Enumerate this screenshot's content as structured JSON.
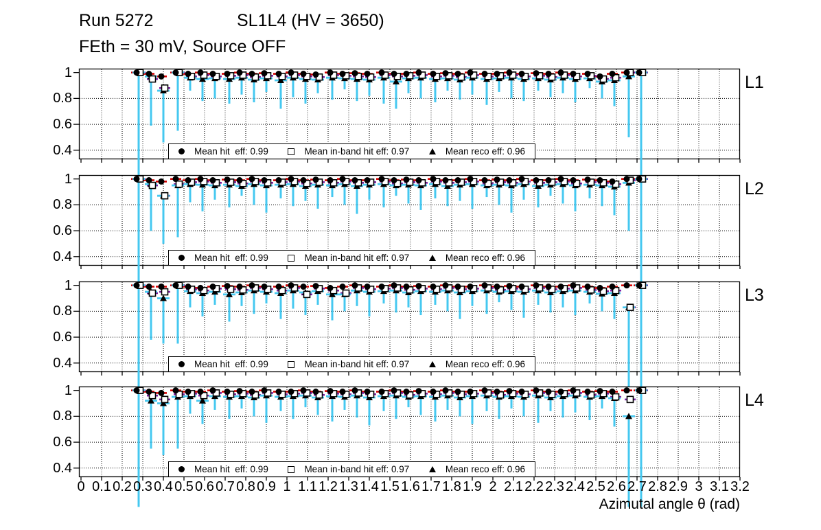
{
  "header": {
    "line1_left": "Run 5272",
    "line1_right": "SL1L4 (HV = 3650)",
    "line2": "FEth = 30 mV, Source OFF"
  },
  "colors": {
    "error_bar": "#45C8F0",
    "hit_cap": "#D40000",
    "inband_cap": "#7B1FA2",
    "reco_cap": "#45C8F0",
    "marker": "#000000",
    "grid": "#000000"
  },
  "legend": {
    "entries": [
      {
        "marker": "filled-circle",
        "label": "Mean hit  eff: 0.99"
      },
      {
        "marker": "open-square",
        "label": "Mean in-band hit eff: 0.97"
      },
      {
        "marker": "filled-triangle",
        "label": "Mean reco eff: 0.96"
      }
    ]
  },
  "x_axis": {
    "title": "Azimutal angle θ (rad)",
    "range": [
      0,
      3.2
    ],
    "tick_labels": [
      "0",
      "0.1",
      "0.2",
      "0.3",
      "0.4",
      "0.5",
      "0.6",
      "0.7",
      "0.8",
      "0.9",
      "1",
      "1.1",
      "1.2",
      "1.3",
      "1.4",
      "1.5",
      "1.6",
      "1.7",
      "1.8",
      "1.9",
      "2",
      "2.1",
      "2.2",
      "2.3",
      "2.4",
      "2.5",
      "2.6",
      "2.7",
      "2.8",
      "2.9",
      "3",
      "3.1",
      "3.2"
    ]
  },
  "y_axis": {
    "range": [
      0.33,
      1.03
    ],
    "tick_labels": [
      "1",
      "0.8",
      "0.6",
      "0.4"
    ],
    "tick_values": [
      1.0,
      0.8,
      0.6,
      0.4
    ],
    "grid_values": [
      0.8,
      0.6,
      0.4
    ]
  },
  "chart_data": [
    {
      "layer": "L1",
      "type": "scatter",
      "series_names": [
        "hit eff",
        "in-band hit eff",
        "reco eff"
      ],
      "means": {
        "hit": 0.99,
        "in_band": 0.97,
        "reco": 0.96
      },
      "point_format": [
        "x_rad",
        "hit",
        "in_band",
        "reco",
        "err_low"
      ],
      "points": [
        [
          0.28,
          1.0,
          1.0,
          1.0,
          0.1
        ],
        [
          0.34,
          0.99,
          0.95,
          0.97,
          0.59
        ],
        [
          0.4,
          0.97,
          0.88,
          0.86,
          0.46
        ],
        [
          0.47,
          1.0,
          1.0,
          1.0,
          0.55
        ],
        [
          0.53,
          0.99,
          0.97,
          0.96,
          0.86
        ],
        [
          0.59,
          1.0,
          0.98,
          0.95,
          0.78
        ],
        [
          0.65,
          0.99,
          0.97,
          0.955,
          0.8
        ],
        [
          0.72,
          0.99,
          0.975,
          0.95,
          0.76
        ],
        [
          0.78,
          1.0,
          0.98,
          0.96,
          0.83
        ],
        [
          0.84,
          0.99,
          0.965,
          0.945,
          0.77
        ],
        [
          0.9,
          0.995,
          0.975,
          0.955,
          0.85
        ],
        [
          0.97,
          0.99,
          0.97,
          0.94,
          0.72
        ],
        [
          1.03,
          1.0,
          0.98,
          0.96,
          0.81
        ],
        [
          1.09,
          0.99,
          0.97,
          0.95,
          0.76
        ],
        [
          1.15,
          0.985,
          0.965,
          0.945,
          0.84
        ],
        [
          1.22,
          1.0,
          0.98,
          0.96,
          0.79
        ],
        [
          1.28,
          0.99,
          0.975,
          0.955,
          0.87
        ],
        [
          1.34,
          0.995,
          0.97,
          0.95,
          0.78
        ],
        [
          1.4,
          0.99,
          0.965,
          0.945,
          0.82
        ],
        [
          1.47,
          1.0,
          0.98,
          0.96,
          0.76
        ],
        [
          1.53,
          0.99,
          0.97,
          0.93,
          0.72
        ],
        [
          1.59,
          0.99,
          0.975,
          0.955,
          0.84
        ],
        [
          1.65,
          1.0,
          0.98,
          0.96,
          0.8
        ],
        [
          1.72,
          0.99,
          0.97,
          0.95,
          0.77
        ],
        [
          1.78,
          0.995,
          0.975,
          0.955,
          0.86
        ],
        [
          1.84,
          0.99,
          0.965,
          0.945,
          0.79
        ],
        [
          1.9,
          1.0,
          0.98,
          0.96,
          0.83
        ],
        [
          1.97,
          0.99,
          0.97,
          0.95,
          0.75
        ],
        [
          2.03,
          0.99,
          0.975,
          0.955,
          0.85
        ],
        [
          2.09,
          1.0,
          0.98,
          0.96,
          0.8
        ],
        [
          2.15,
          0.99,
          0.97,
          0.95,
          0.78
        ],
        [
          2.22,
          0.995,
          0.975,
          0.955,
          0.86
        ],
        [
          2.28,
          0.99,
          0.965,
          0.945,
          0.81
        ],
        [
          2.34,
          1.0,
          0.98,
          0.96,
          0.84
        ],
        [
          2.4,
          0.99,
          0.97,
          0.95,
          0.77
        ],
        [
          2.47,
          0.99,
          0.975,
          0.955,
          0.88
        ],
        [
          2.53,
          0.97,
          0.95,
          0.93,
          0.8
        ],
        [
          2.59,
          0.99,
          0.96,
          0.94,
          0.74
        ],
        [
          2.66,
          1.0,
          1.0,
          0.97,
          0.5
        ],
        [
          2.72,
          1.0,
          1.0,
          1.0,
          0.1
        ]
      ]
    },
    {
      "layer": "L2",
      "type": "scatter",
      "series_names": [
        "hit eff",
        "in-band hit eff",
        "reco eff"
      ],
      "means": {
        "hit": 0.99,
        "in_band": 0.97,
        "reco": 0.96
      },
      "point_format": [
        "x_rad",
        "hit",
        "in_band",
        "reco",
        "err_low"
      ],
      "points": [
        [
          0.28,
          1.0,
          1.0,
          1.0,
          0.1
        ],
        [
          0.34,
          0.99,
          0.95,
          0.96,
          0.6
        ],
        [
          0.4,
          0.98,
          0.87,
          0.87,
          0.5
        ],
        [
          0.47,
          1.0,
          0.96,
          0.95,
          0.55
        ],
        [
          0.53,
          0.99,
          0.975,
          0.96,
          0.82
        ],
        [
          0.59,
          1.0,
          0.98,
          0.955,
          0.75
        ],
        [
          0.65,
          0.99,
          0.97,
          0.95,
          0.84
        ],
        [
          0.72,
          0.995,
          0.975,
          0.955,
          0.78
        ],
        [
          0.78,
          0.99,
          0.965,
          0.945,
          0.87
        ],
        [
          0.84,
          1.0,
          0.98,
          0.96,
          0.8
        ],
        [
          0.9,
          0.99,
          0.97,
          0.95,
          0.74
        ],
        [
          0.97,
          0.99,
          0.975,
          0.955,
          0.85
        ],
        [
          1.03,
          1.0,
          0.98,
          0.96,
          0.79
        ],
        [
          1.09,
          0.99,
          0.965,
          0.945,
          0.83
        ],
        [
          1.15,
          0.995,
          0.975,
          0.955,
          0.77
        ],
        [
          1.22,
          0.99,
          0.97,
          0.95,
          0.86
        ],
        [
          1.28,
          1.0,
          0.98,
          0.96,
          0.8
        ],
        [
          1.34,
          0.99,
          0.97,
          0.945,
          0.73
        ],
        [
          1.4,
          0.99,
          0.975,
          0.955,
          0.84
        ],
        [
          1.47,
          1.0,
          0.98,
          0.96,
          0.78
        ],
        [
          1.53,
          0.99,
          0.965,
          0.95,
          0.87
        ],
        [
          1.59,
          0.995,
          0.975,
          0.955,
          0.81
        ],
        [
          1.65,
          0.99,
          0.97,
          0.95,
          0.76
        ],
        [
          1.72,
          1.0,
          0.98,
          0.96,
          0.85
        ],
        [
          1.78,
          0.99,
          0.97,
          0.945,
          0.79
        ],
        [
          1.84,
          0.99,
          0.975,
          0.955,
          0.83
        ],
        [
          1.9,
          1.0,
          0.98,
          0.96,
          0.77
        ],
        [
          1.97,
          0.99,
          0.965,
          0.95,
          0.86
        ],
        [
          2.03,
          0.995,
          0.975,
          0.955,
          0.8
        ],
        [
          2.09,
          0.99,
          0.97,
          0.95,
          0.74
        ],
        [
          2.15,
          1.0,
          0.98,
          0.96,
          0.84
        ],
        [
          2.22,
          0.99,
          0.97,
          0.945,
          0.78
        ],
        [
          2.28,
          0.99,
          0.975,
          0.955,
          0.87
        ],
        [
          2.34,
          1.0,
          0.98,
          0.96,
          0.81
        ],
        [
          2.4,
          0.99,
          0.965,
          0.95,
          0.75
        ],
        [
          2.47,
          0.995,
          0.975,
          0.955,
          0.85
        ],
        [
          2.53,
          0.99,
          0.97,
          0.95,
          0.79
        ],
        [
          2.59,
          0.98,
          0.96,
          0.94,
          0.72
        ],
        [
          2.66,
          1.0,
          0.99,
          0.97,
          0.6
        ],
        [
          2.72,
          1.0,
          1.0,
          1.0,
          0.1
        ]
      ]
    },
    {
      "layer": "L3",
      "type": "scatter",
      "series_names": [
        "hit eff",
        "in-band hit eff",
        "reco eff"
      ],
      "means": {
        "hit": 0.99,
        "in_band": 0.97,
        "reco": 0.96
      },
      "point_format": [
        "x_rad",
        "hit",
        "in_band",
        "reco",
        "err_low"
      ],
      "points": [
        [
          0.28,
          1.0,
          1.0,
          1.0,
          0.1
        ],
        [
          0.34,
          0.99,
          0.94,
          0.95,
          0.58
        ],
        [
          0.4,
          0.99,
          0.95,
          0.9,
          0.55
        ],
        [
          0.47,
          1.0,
          1.0,
          1.0,
          0.55
        ],
        [
          0.53,
          0.99,
          0.97,
          0.955,
          0.83
        ],
        [
          0.59,
          0.98,
          0.96,
          0.94,
          0.76
        ],
        [
          0.65,
          0.99,
          0.975,
          0.95,
          0.85
        ],
        [
          0.72,
          0.995,
          0.97,
          0.93,
          0.72
        ],
        [
          0.78,
          0.99,
          0.965,
          0.945,
          0.84
        ],
        [
          0.84,
          1.0,
          0.98,
          0.96,
          0.78
        ],
        [
          0.9,
          0.99,
          0.97,
          0.95,
          0.86
        ],
        [
          0.97,
          0.99,
          0.96,
          0.94,
          0.74
        ],
        [
          1.03,
          1.0,
          0.98,
          0.96,
          0.82
        ],
        [
          1.09,
          0.99,
          0.93,
          0.945,
          0.77
        ],
        [
          1.15,
          0.995,
          0.975,
          0.955,
          0.85
        ],
        [
          1.22,
          0.98,
          0.96,
          0.93,
          0.73
        ],
        [
          1.28,
          0.99,
          0.94,
          0.93,
          0.8
        ],
        [
          1.34,
          1.0,
          0.98,
          0.96,
          0.84
        ],
        [
          1.4,
          0.99,
          0.97,
          0.95,
          0.76
        ],
        [
          1.47,
          0.99,
          0.975,
          0.955,
          0.86
        ],
        [
          1.53,
          1.0,
          0.98,
          0.96,
          0.79
        ],
        [
          1.59,
          0.99,
          0.965,
          0.945,
          0.83
        ],
        [
          1.65,
          0.995,
          0.975,
          0.955,
          0.77
        ],
        [
          1.72,
          0.99,
          0.97,
          0.95,
          0.85
        ],
        [
          1.78,
          1.0,
          0.98,
          0.96,
          0.8
        ],
        [
          1.84,
          0.99,
          0.97,
          0.945,
          0.74
        ],
        [
          1.9,
          0.99,
          0.975,
          0.955,
          0.84
        ],
        [
          1.97,
          1.0,
          0.98,
          0.96,
          0.78
        ],
        [
          2.03,
          0.99,
          0.965,
          0.95,
          0.87
        ],
        [
          2.09,
          0.995,
          0.975,
          0.955,
          0.81
        ],
        [
          2.15,
          0.99,
          0.97,
          0.95,
          0.75
        ],
        [
          2.22,
          1.0,
          0.98,
          0.96,
          0.85
        ],
        [
          2.28,
          0.99,
          0.97,
          0.945,
          0.79
        ],
        [
          2.34,
          0.99,
          0.975,
          0.955,
          0.83
        ],
        [
          2.4,
          1.0,
          0.98,
          0.96,
          0.77
        ],
        [
          2.47,
          0.99,
          0.965,
          0.95,
          0.86
        ],
        [
          2.53,
          0.98,
          0.955,
          0.935,
          0.8
        ],
        [
          2.59,
          0.99,
          0.96,
          0.94,
          0.74
        ],
        [
          2.66,
          1.0,
          0.83,
          0.83,
          0.1
        ],
        [
          2.72,
          1.0,
          1.0,
          1.0,
          0.1
        ]
      ]
    },
    {
      "layer": "L4",
      "type": "scatter",
      "series_names": [
        "hit eff",
        "in-band hit eff",
        "reco eff"
      ],
      "means": {
        "hit": 0.99,
        "in_band": 0.97,
        "reco": 0.96
      },
      "point_format": [
        "x_rad",
        "hit",
        "in_band",
        "reco",
        "err_low"
      ],
      "points": [
        [
          0.28,
          1.0,
          1.0,
          1.0,
          0.1
        ],
        [
          0.34,
          0.99,
          0.96,
          0.92,
          0.55
        ],
        [
          0.4,
          0.98,
          0.93,
          0.9,
          0.5
        ],
        [
          0.47,
          1.0,
          0.97,
          0.95,
          0.55
        ],
        [
          0.53,
          0.99,
          0.975,
          0.955,
          0.82
        ],
        [
          0.59,
          0.99,
          0.96,
          0.92,
          0.74
        ],
        [
          0.65,
          1.0,
          0.98,
          0.955,
          0.85
        ],
        [
          0.72,
          0.99,
          0.97,
          0.95,
          0.78
        ],
        [
          0.78,
          0.995,
          0.975,
          0.955,
          0.86
        ],
        [
          0.84,
          0.99,
          0.965,
          0.945,
          0.8
        ],
        [
          0.9,
          1.0,
          0.98,
          0.96,
          0.75
        ],
        [
          0.97,
          0.99,
          0.97,
          0.95,
          0.84
        ],
        [
          1.03,
          0.99,
          0.975,
          0.955,
          0.78
        ],
        [
          1.09,
          1.0,
          0.98,
          0.96,
          0.87
        ],
        [
          1.15,
          0.99,
          0.965,
          0.945,
          0.81
        ],
        [
          1.22,
          0.995,
          0.975,
          0.955,
          0.76
        ],
        [
          1.28,
          0.99,
          0.97,
          0.95,
          0.85
        ],
        [
          1.34,
          1.0,
          0.98,
          0.96,
          0.79
        ],
        [
          1.4,
          0.99,
          0.97,
          0.945,
          0.73
        ],
        [
          1.47,
          0.99,
          0.975,
          0.955,
          0.84
        ],
        [
          1.53,
          1.0,
          0.98,
          0.96,
          0.78
        ],
        [
          1.59,
          0.99,
          0.965,
          0.95,
          0.87
        ],
        [
          1.65,
          0.995,
          0.975,
          0.955,
          0.81
        ],
        [
          1.72,
          0.99,
          0.97,
          0.95,
          0.76
        ],
        [
          1.78,
          1.0,
          0.98,
          0.96,
          0.85
        ],
        [
          1.84,
          0.99,
          0.97,
          0.945,
          0.8
        ],
        [
          1.9,
          0.99,
          0.975,
          0.955,
          0.74
        ],
        [
          1.97,
          1.0,
          0.98,
          0.96,
          0.84
        ],
        [
          2.03,
          0.99,
          0.965,
          0.95,
          0.78
        ],
        [
          2.09,
          0.995,
          0.975,
          0.955,
          0.86
        ],
        [
          2.15,
          0.99,
          0.97,
          0.95,
          0.8
        ],
        [
          2.22,
          1.0,
          0.98,
          0.96,
          0.75
        ],
        [
          2.28,
          0.99,
          0.97,
          0.945,
          0.84
        ],
        [
          2.34,
          0.99,
          0.975,
          0.955,
          0.79
        ],
        [
          2.4,
          1.0,
          0.98,
          0.96,
          0.83
        ],
        [
          2.47,
          0.99,
          0.965,
          0.95,
          0.77
        ],
        [
          2.53,
          0.995,
          0.975,
          0.955,
          0.86
        ],
        [
          2.59,
          0.99,
          0.95,
          0.94,
          0.72
        ],
        [
          2.66,
          1.0,
          0.93,
          0.8,
          0.1
        ],
        [
          2.72,
          1.0,
          1.0,
          1.0,
          0.1
        ]
      ]
    }
  ]
}
